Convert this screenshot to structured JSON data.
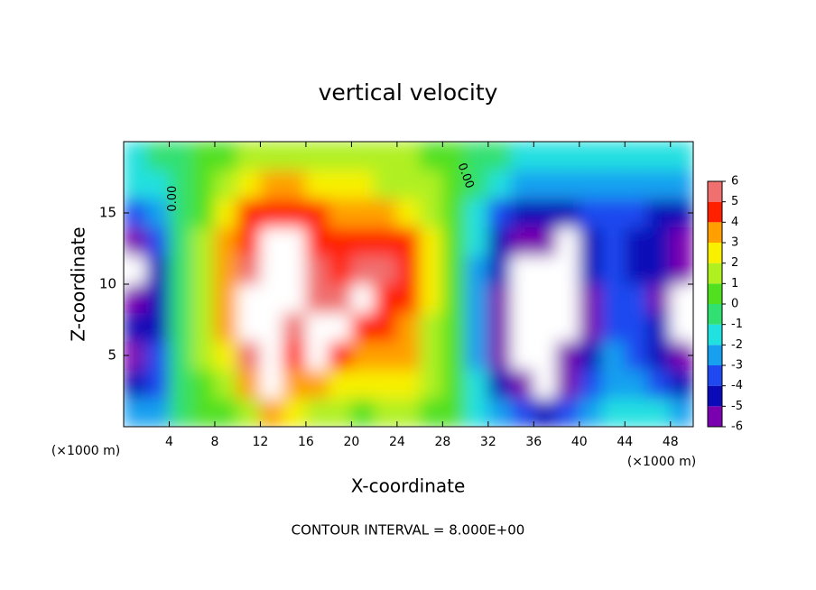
{
  "chart_data": {
    "type": "contour",
    "title": "vertical velocity",
    "x_label": "X-coordinate",
    "y_label": "Z-coordinate",
    "y_unit": "(×1000 m)",
    "x_unit": "(×1000 m)",
    "footer": "CONTOUR INTERVAL = 8.000E+00",
    "annotations": [
      "0.00",
      "0.00"
    ],
    "xlim": [
      0,
      50
    ],
    "ylim": [
      0,
      20
    ],
    "xticks": [
      4,
      8,
      12,
      16,
      20,
      24,
      28,
      32,
      36,
      40,
      44,
      48
    ],
    "yticks": [
      5,
      10,
      15
    ],
    "x": [
      1,
      3,
      5,
      7,
      9,
      11,
      13,
      15,
      17,
      19,
      21,
      23,
      25,
      27,
      29,
      31,
      33,
      35,
      37,
      39,
      41,
      43,
      45,
      47,
      49
    ],
    "y": [
      1,
      3,
      5,
      7,
      9,
      11,
      13,
      15,
      17,
      19
    ],
    "z": [
      [
        -2.5,
        -2,
        0,
        0.5,
        1,
        2,
        4,
        3,
        2,
        1.5,
        1,
        1.5,
        1.5,
        1,
        0.5,
        -1,
        -2.5,
        -3.5,
        -4.5,
        -3,
        -2,
        -1,
        -1.5,
        -1.5,
        -2
      ],
      [
        -4.5,
        -3,
        -0.5,
        1,
        2,
        4,
        6.5,
        4,
        4,
        3,
        2.5,
        3,
        3,
        1.5,
        0.5,
        -1.5,
        -4,
        -5,
        -7,
        -5,
        -3.5,
        -2,
        -2.5,
        -3,
        -4
      ],
      [
        -5,
        -3.5,
        -0.5,
        1.5,
        3,
        5.5,
        7,
        5,
        6.5,
        5,
        4,
        4,
        3.5,
        2,
        0.5,
        -2,
        -5,
        -6.5,
        -7,
        -6,
        -4.5,
        -2.5,
        -3,
        -4,
        -5
      ],
      [
        -4.5,
        -4,
        -0.5,
        2,
        3.5,
        6.5,
        7,
        6,
        6.5,
        6.5,
        5,
        4.5,
        4,
        2,
        0.5,
        -2,
        -5,
        -7,
        -7,
        -6.5,
        -5,
        -3,
        -3,
        -4.5,
        -6.5
      ],
      [
        -6,
        -4.5,
        -0.5,
        2,
        4,
        6.5,
        7,
        7,
        6,
        5.5,
        6.5,
        5,
        4.5,
        2.5,
        0.5,
        -2,
        -5,
        -7,
        -7,
        -6.5,
        -5,
        -3,
        -3.5,
        -5,
        -7
      ],
      [
        -7,
        -4,
        -0.5,
        2,
        4,
        5.5,
        7,
        7,
        6,
        5,
        5.5,
        5.5,
        4.5,
        2.5,
        0.5,
        -2,
        -4.5,
        -6.5,
        -7,
        -6.5,
        -4.5,
        -3,
        -4,
        -4.5,
        -6
      ],
      [
        -5,
        -3.5,
        -0.5,
        1.5,
        3.5,
        5,
        6.5,
        6.5,
        5,
        4.5,
        5,
        5,
        4.5,
        2.5,
        0.5,
        -1.5,
        -4,
        -5,
        -5.5,
        -6.5,
        -4,
        -3,
        -4,
        -4.5,
        -5
      ],
      [
        -3,
        -2.5,
        -0.5,
        1,
        3,
        4.5,
        5,
        5,
        4.5,
        3.5,
        3.5,
        3.5,
        3,
        2,
        0.5,
        -1,
        -3,
        -4,
        -4.5,
        -4,
        -3,
        -3,
        -3.5,
        -4,
        -4
      ],
      [
        -1.5,
        -1,
        0,
        1,
        2,
        3,
        3.5,
        3.5,
        3,
        2.5,
        2.5,
        2,
        2,
        1.5,
        0.5,
        -0.5,
        -1.5,
        -2,
        -2.5,
        -2,
        -2,
        -2,
        -2.5,
        -2.5,
        -2.5
      ],
      [
        -1,
        -0.5,
        0,
        0.5,
        1,
        1.5,
        2,
        2,
        2,
        1.5,
        1.5,
        1.5,
        1.5,
        1,
        0.5,
        0,
        -0.5,
        -1,
        -1,
        -1.5,
        -1.5,
        -1.5,
        -1.5,
        -1.5,
        -1.5
      ]
    ],
    "colorbar_ticks": [
      -6,
      -5,
      -4,
      -3,
      -2,
      -1,
      0,
      1,
      2,
      3,
      4,
      5,
      6
    ],
    "colors": [
      "#7a00b0",
      "#0a0ab8",
      "#1f48f0",
      "#18a0f0",
      "#20e0e0",
      "#30e070",
      "#50e020",
      "#b0f020",
      "#f8f000",
      "#ffa000",
      "#ff2000",
      "#f07070"
    ],
    "out_of_range_color": "#ffffff"
  }
}
